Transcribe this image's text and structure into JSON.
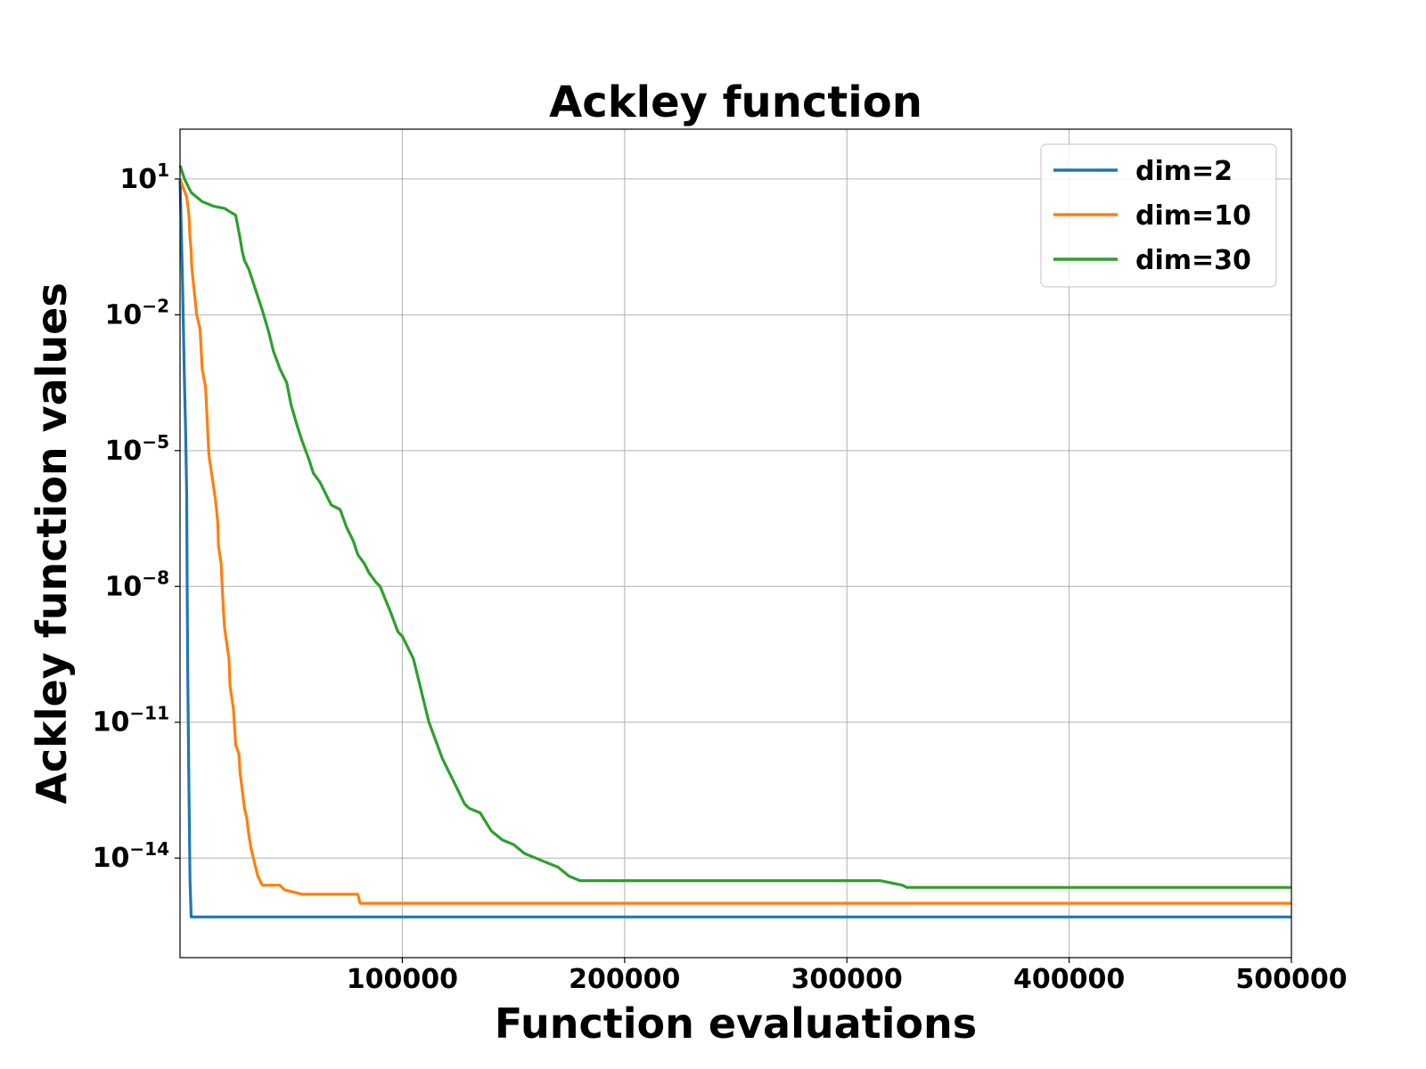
{
  "chart_data": {
    "type": "line",
    "title": "Ackley function",
    "xlabel": "Function evaluations",
    "ylabel": "Ackley function values",
    "xlim": [
      0,
      500000
    ],
    "ylim_log10": [
      -16.2,
      2.1
    ],
    "yscale": "log",
    "grid": true,
    "legend_position": "top-right",
    "x_ticks": [
      {
        "value": 100000,
        "label": "100000"
      },
      {
        "value": 200000,
        "label": "200000"
      },
      {
        "value": 300000,
        "label": "300000"
      },
      {
        "value": 400000,
        "label": "400000"
      },
      {
        "value": 500000,
        "label": "500000"
      }
    ],
    "y_ticks": [
      {
        "exp": 1,
        "base": "10",
        "sup": "1"
      },
      {
        "exp": -2,
        "base": "10",
        "sup": "−2"
      },
      {
        "exp": -5,
        "base": "10",
        "sup": "−5"
      },
      {
        "exp": -8,
        "base": "10",
        "sup": "−8"
      },
      {
        "exp": -11,
        "base": "10",
        "sup": "−11"
      },
      {
        "exp": -14,
        "base": "10",
        "sup": "−14"
      }
    ],
    "series": [
      {
        "name": "dim=2",
        "color": "#1f77b4",
        "x": [
          0,
          1000,
          2000,
          2500,
          3000,
          3200,
          3500,
          4000,
          4500,
          5000,
          500000
        ],
        "log10_y": [
          1.0,
          -1.0,
          -3.5,
          -4.5,
          -6.0,
          -8.0,
          -10.0,
          -12.5,
          -14.5,
          -15.3,
          -15.3
        ]
      },
      {
        "name": "dim=10",
        "color": "#ff7f0e",
        "x": [
          0,
          1500,
          3000,
          4000,
          4500,
          5000,
          5200,
          6000,
          7500,
          9000,
          10000,
          11500,
          12000,
          13000,
          14500,
          16000,
          17000,
          17300,
          18500,
          19500,
          20000,
          20300,
          22000,
          22500,
          24000,
          25000,
          26500,
          27000,
          28000,
          29000,
          30000,
          31000,
          32000,
          33000,
          34000,
          35000,
          37000,
          45000,
          47000,
          55000,
          80000,
          81000,
          500000
        ],
        "log10_y": [
          1.0,
          0.8,
          0.6,
          0.2,
          -0.3,
          -0.6,
          -0.9,
          -1.3,
          -2.0,
          -2.3,
          -3.2,
          -3.6,
          -4.1,
          -5.1,
          -5.6,
          -6.1,
          -6.6,
          -7.1,
          -7.5,
          -8.5,
          -8.9,
          -9.0,
          -9.6,
          -10.2,
          -10.7,
          -11.5,
          -11.7,
          -12.1,
          -12.5,
          -12.9,
          -13.1,
          -13.5,
          -13.8,
          -14.0,
          -14.2,
          -14.4,
          -14.6,
          -14.6,
          -14.7,
          -14.8,
          -14.8,
          -15.0,
          -15.0
        ]
      },
      {
        "name": "dim=30",
        "color": "#2ca02c",
        "x": [
          0,
          2000,
          5000,
          10000,
          15000,
          20000,
          25000,
          27000,
          28000,
          29000,
          31000,
          33000,
          35000,
          37000,
          40000,
          42000,
          45000,
          48000,
          50000,
          53000,
          55000,
          58000,
          60000,
          63000,
          65000,
          68000,
          72000,
          75000,
          78000,
          80000,
          83000,
          85000,
          88000,
          90000,
          95000,
          98000,
          100000,
          105000,
          110000,
          112000,
          115000,
          118000,
          120000,
          123000,
          125000,
          128000,
          130000,
          135000,
          140000,
          145000,
          150000,
          155000,
          160000,
          165000,
          170000,
          175000,
          180000,
          300000,
          315000,
          325000,
          327000,
          500000
        ],
        "log10_y": [
          1.3,
          1.0,
          0.7,
          0.5,
          0.4,
          0.35,
          0.2,
          -0.3,
          -0.6,
          -0.8,
          -1.0,
          -1.3,
          -1.6,
          -1.9,
          -2.4,
          -2.8,
          -3.2,
          -3.5,
          -4.0,
          -4.5,
          -4.8,
          -5.2,
          -5.5,
          -5.7,
          -5.9,
          -6.2,
          -6.3,
          -6.7,
          -7.0,
          -7.3,
          -7.5,
          -7.7,
          -7.9,
          -8.0,
          -8.6,
          -9.0,
          -9.1,
          -9.6,
          -10.6,
          -11.0,
          -11.4,
          -11.8,
          -12.0,
          -12.3,
          -12.5,
          -12.8,
          -12.9,
          -13.0,
          -13.4,
          -13.6,
          -13.7,
          -13.9,
          -14.0,
          -14.1,
          -14.2,
          -14.4,
          -14.5,
          -14.5,
          -14.5,
          -14.6,
          -14.65,
          -14.65
        ]
      }
    ]
  }
}
